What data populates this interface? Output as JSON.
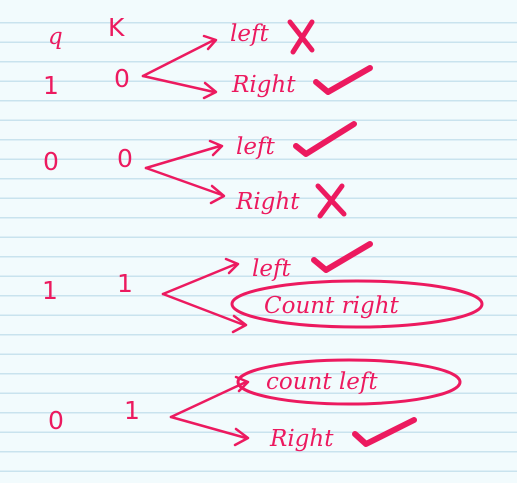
{
  "headers": {
    "q": "q",
    "k": "K"
  },
  "rows": [
    {
      "q": "1",
      "k": "0",
      "top": {
        "label": "left",
        "mark": "cross"
      },
      "bottom": {
        "label": "Right",
        "mark": "check"
      }
    },
    {
      "q": "0",
      "k": "0",
      "top": {
        "label": "left",
        "mark": "check"
      },
      "bottom": {
        "label": "Right",
        "mark": "cross"
      }
    },
    {
      "q": "1",
      "k": "1",
      "top": {
        "label": "left",
        "mark": "check"
      },
      "bottom": {
        "label": "Count right",
        "mark": "circled"
      }
    },
    {
      "q": "0",
      "k": "1",
      "top": {
        "label": "count left",
        "mark": "circled"
      },
      "bottom": {
        "label": "Right",
        "mark": "check"
      }
    }
  ],
  "colors": {
    "ink": "#ec1a5f",
    "paper": "#f2fbfd",
    "rule": "#c9e3ee"
  }
}
